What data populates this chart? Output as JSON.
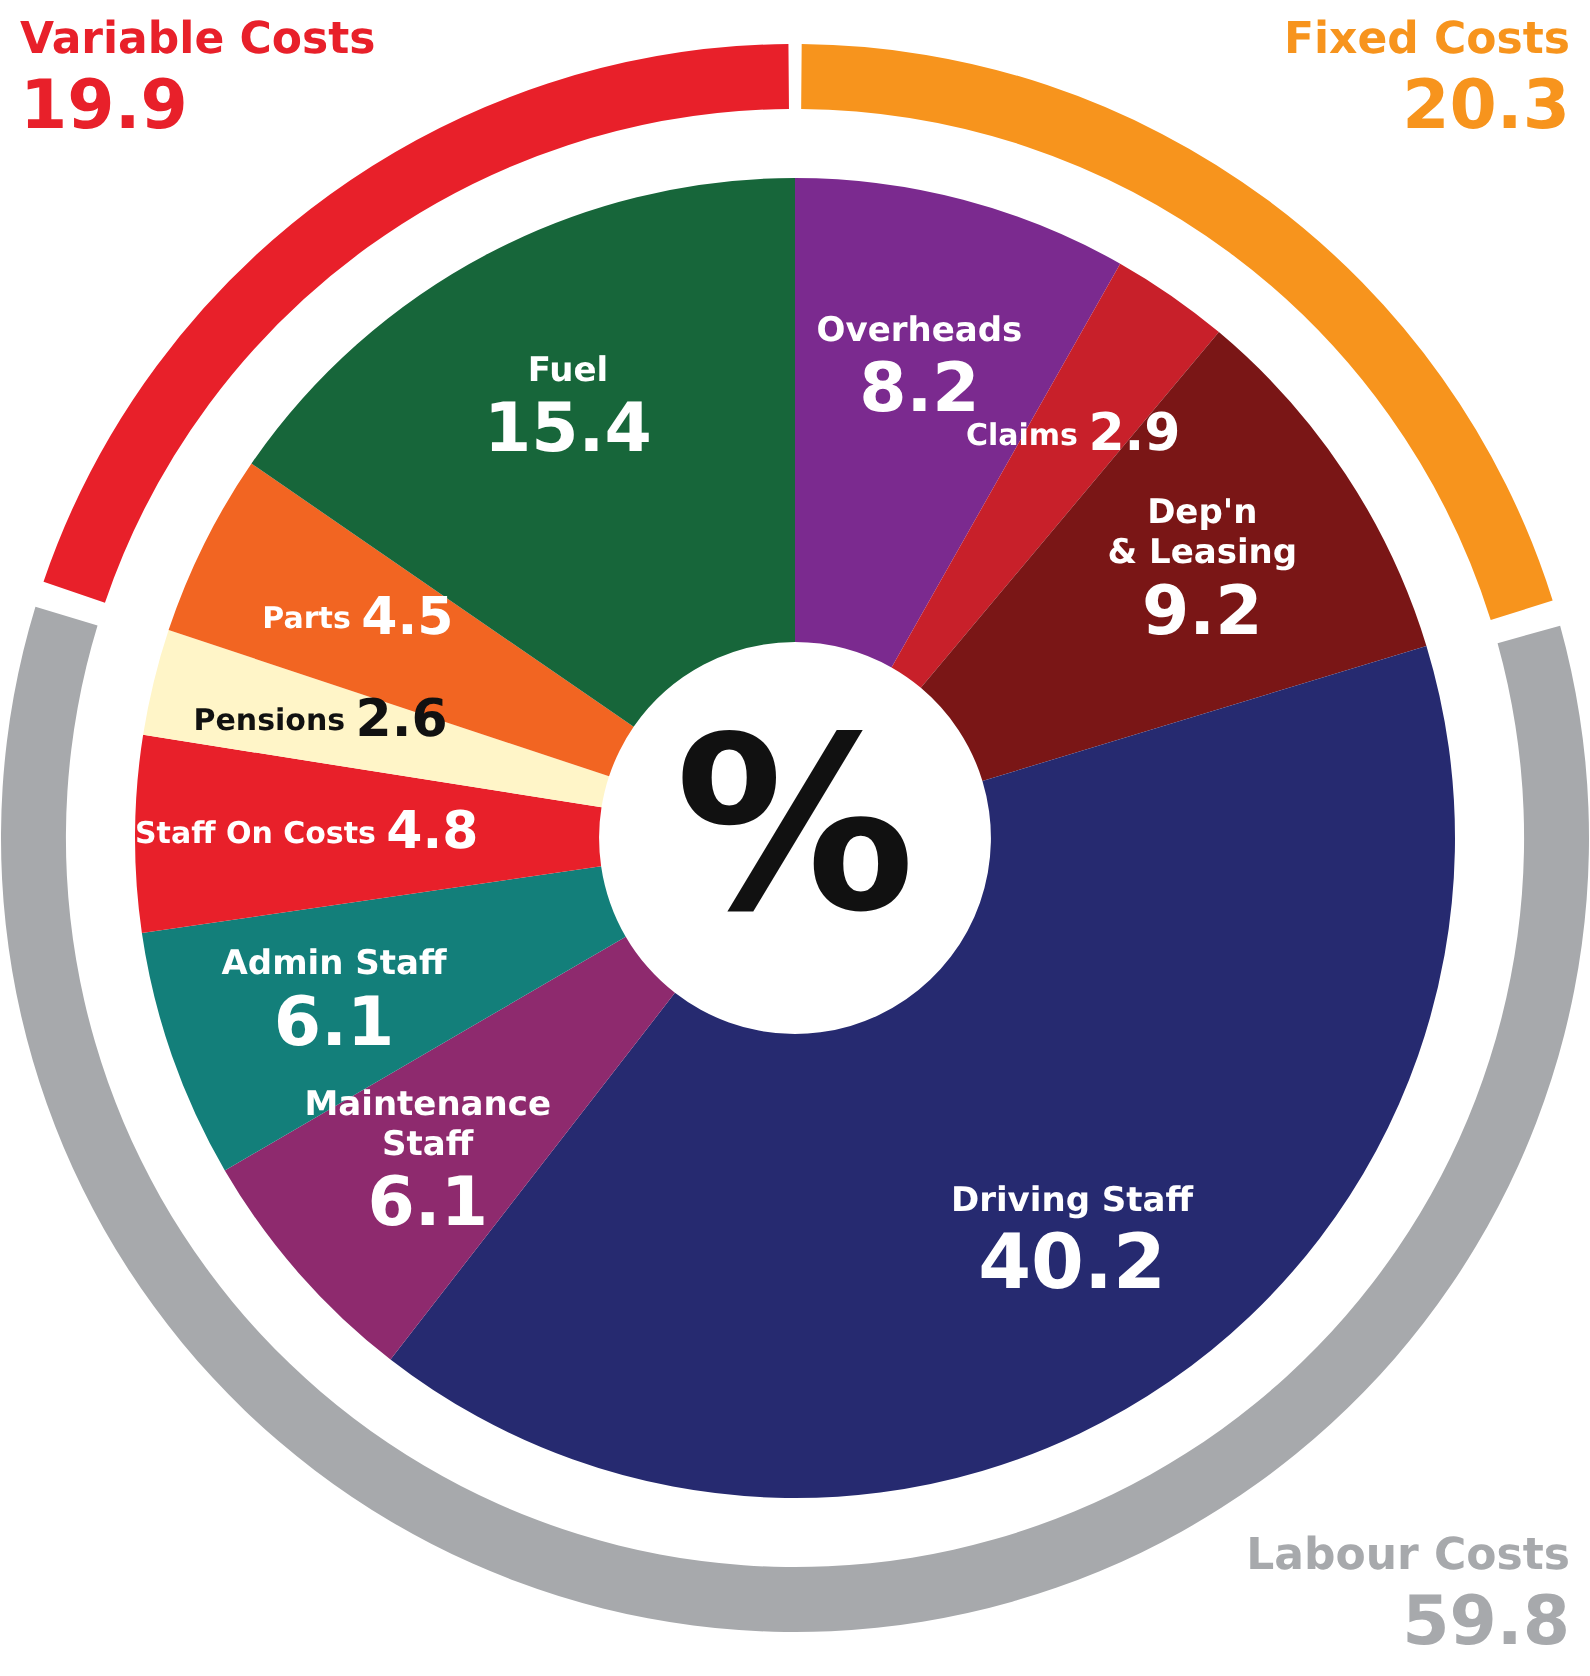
{
  "chart_data": [
    {
      "type": "donut",
      "categories": [
        "Overheads",
        "Claims",
        "Dep'n & Leasing",
        "Driving Staff",
        "Maintenance Staff",
        "Admin Staff",
        "Staff On Costs",
        "Pensions",
        "Parts",
        "Fuel"
      ],
      "values": [
        8.2,
        2.9,
        9.2,
        40.2,
        6.1,
        6.1,
        4.8,
        2.6,
        4.5,
        15.4
      ],
      "colors": [
        "#7b2a8f",
        "#c8202a",
        "#7a1616",
        "#262a70",
        "#8e2a6e",
        "#137f7a",
        "#e8202a",
        "#fff5c8",
        "#f26522",
        "#17663a"
      ],
      "data_labels": true,
      "annotations": [
        "%"
      ]
    },
    {
      "type": "donut",
      "categories": [
        "Fixed Costs",
        "Labour Costs",
        "Variable Costs"
      ],
      "values": [
        20.3,
        59.8,
        19.9
      ],
      "colors": [
        "#f7941d",
        "#a7a9ac",
        "#e8202a"
      ],
      "data_labels": true
    }
  ]
}
